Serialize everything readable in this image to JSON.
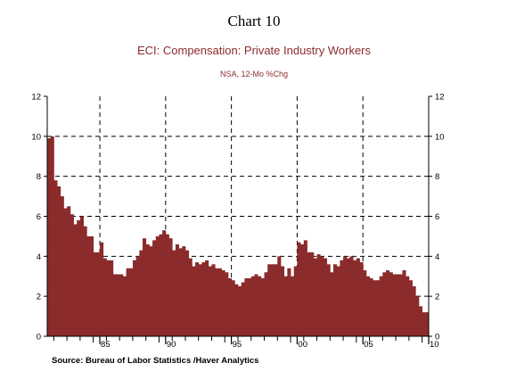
{
  "page": {
    "chart_number": "Chart 10",
    "source": "Source:  Bureau of Labor Statistics /Haver Analytics"
  },
  "colors": {
    "bars": "#8b2b2b",
    "title": "#8b2b2b",
    "grid": "#000000",
    "axis": "#000000"
  },
  "chart_data": {
    "type": "bar",
    "title": "ECI: Compensation: Private Industry Workers",
    "subtitle": "NSA, 12-Mo %Chg",
    "xlabel": "",
    "ylabel": "",
    "frequency": "quarterly",
    "x_start": "1981 Q1",
    "xlim": [
      1981,
      2010
    ],
    "ylim": [
      0,
      12
    ],
    "y_ticks": [
      0,
      2,
      4,
      6,
      8,
      10,
      12
    ],
    "y_tick_labels": [
      "0",
      "2",
      "4",
      "6",
      "8",
      "10",
      "12"
    ],
    "x_ticks": [
      1985,
      1990,
      1995,
      2000,
      2005,
      2010
    ],
    "x_tick_labels": [
      "85",
      "90",
      "95",
      "00",
      "05",
      "10"
    ],
    "grid": "dashed",
    "y_axis_sides": [
      "left",
      "right"
    ],
    "values": [
      9.9,
      10.0,
      7.8,
      7.5,
      7.0,
      6.4,
      6.5,
      6.1,
      5.6,
      5.8,
      6.0,
      5.5,
      5.0,
      5.0,
      4.2,
      4.2,
      4.7,
      3.9,
      3.8,
      3.8,
      3.1,
      3.1,
      3.1,
      3.0,
      3.4,
      3.4,
      3.8,
      4.0,
      4.3,
      4.9,
      4.6,
      4.5,
      4.8,
      5.0,
      5.1,
      5.3,
      5.1,
      4.9,
      4.3,
      4.6,
      4.4,
      4.5,
      4.3,
      3.9,
      3.5,
      3.7,
      3.6,
      3.7,
      3.8,
      3.5,
      3.6,
      3.4,
      3.4,
      3.3,
      3.2,
      2.9,
      2.8,
      2.6,
      2.5,
      2.7,
      2.9,
      2.9,
      3.0,
      3.1,
      3.0,
      2.9,
      3.2,
      3.6,
      3.6,
      3.6,
      4.0,
      3.5,
      3.0,
      3.4,
      3.0,
      3.5,
      4.7,
      4.6,
      4.8,
      4.2,
      4.2,
      3.9,
      4.1,
      4.0,
      3.9,
      3.6,
      3.2,
      3.6,
      3.5,
      3.8,
      4.0,
      3.9,
      4.0,
      3.8,
      3.9,
      3.7,
      3.3,
      3.0,
      2.9,
      2.8,
      2.8,
      3.0,
      3.2,
      3.3,
      3.2,
      3.1,
      3.1,
      3.1,
      3.3,
      3.0,
      2.8,
      2.5,
      2.0,
      1.5,
      1.2,
      1.2
    ]
  }
}
